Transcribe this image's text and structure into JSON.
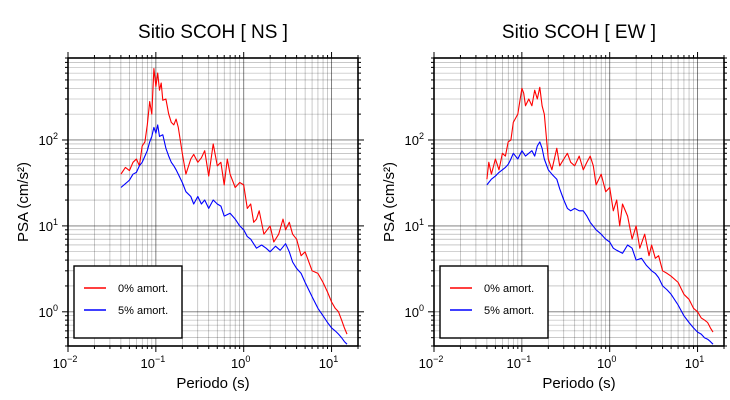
{
  "chart_data": [
    {
      "type": "line",
      "title": "Sitio SCOH [ NS ]",
      "xlabel": "Periodo (s)",
      "ylabel": "PSA (cm/s²)",
      "xscale": "log",
      "yscale": "log",
      "xlim": [
        0.01,
        20
      ],
      "ylim": [
        0.4,
        900
      ],
      "grid": true,
      "legend_position": "bottom-left",
      "xticks": [
        {
          "base": "10",
          "exp": "−2"
        },
        {
          "base": "10",
          "exp": "−1"
        },
        {
          "base": "10",
          "exp": "0"
        },
        {
          "base": "10",
          "exp": "1"
        }
      ],
      "yticks": [
        {
          "base": "10",
          "exp": "0"
        },
        {
          "base": "10",
          "exp": "1"
        },
        {
          "base": "10",
          "exp": "2"
        }
      ],
      "series": [
        {
          "name": "0% amort.",
          "color": "#ff0000",
          "x": [
            0.04,
            0.045,
            0.05,
            0.055,
            0.06,
            0.065,
            0.07,
            0.075,
            0.08,
            0.085,
            0.09,
            0.095,
            0.1,
            0.105,
            0.11,
            0.115,
            0.12,
            0.13,
            0.14,
            0.15,
            0.16,
            0.17,
            0.18,
            0.2,
            0.22,
            0.25,
            0.27,
            0.3,
            0.33,
            0.36,
            0.4,
            0.45,
            0.5,
            0.55,
            0.6,
            0.65,
            0.7,
            0.8,
            0.9,
            1.0,
            1.1,
            1.2,
            1.3,
            1.4,
            1.5,
            1.7,
            2.0,
            2.2,
            2.5,
            2.8,
            3.0,
            3.3,
            3.6,
            4.0,
            4.5,
            5.0,
            6.0,
            7.0,
            8.0,
            9.0,
            10.0,
            11.0,
            12.0,
            13.0,
            14.0,
            15.0
          ],
          "y": [
            40,
            48,
            44,
            55,
            60,
            50,
            85,
            95,
            150,
            280,
            200,
            680,
            420,
            600,
            380,
            460,
            290,
            300,
            200,
            160,
            150,
            175,
            140,
            70,
            40,
            60,
            68,
            55,
            62,
            75,
            38,
            90,
            50,
            55,
            30,
            60,
            40,
            28,
            32,
            30,
            16,
            18,
            11,
            12,
            15,
            8,
            10,
            6.5,
            8,
            12,
            9,
            11,
            8,
            7,
            4.5,
            5,
            3,
            2.8,
            2.2,
            1.7,
            1.3,
            1.1,
            1.0,
            0.8,
            0.65,
            0.55
          ]
        },
        {
          "name": "5% amort.",
          "color": "#0000ff",
          "x": [
            0.04,
            0.045,
            0.05,
            0.055,
            0.06,
            0.065,
            0.07,
            0.075,
            0.08,
            0.085,
            0.09,
            0.095,
            0.1,
            0.105,
            0.11,
            0.12,
            0.13,
            0.14,
            0.15,
            0.16,
            0.17,
            0.18,
            0.2,
            0.22,
            0.25,
            0.27,
            0.3,
            0.33,
            0.36,
            0.4,
            0.45,
            0.5,
            0.55,
            0.6,
            0.7,
            0.8,
            0.9,
            1.0,
            1.1,
            1.2,
            1.4,
            1.6,
            1.8,
            2.0,
            2.3,
            2.6,
            3.0,
            3.3,
            3.6,
            4.0,
            4.5,
            5.0,
            6.0,
            7.0,
            8.0,
            9.0,
            10.0,
            11.0,
            12.0,
            13.0,
            14.0,
            15.0
          ],
          "y": [
            28,
            31,
            34,
            40,
            42,
            50,
            55,
            65,
            75,
            95,
            110,
            140,
            120,
            150,
            110,
            115,
            80,
            65,
            55,
            50,
            45,
            40,
            32,
            25,
            22,
            18,
            22,
            18,
            20,
            16,
            20,
            18,
            17,
            13,
            14,
            12,
            10,
            9,
            7.5,
            7,
            5.5,
            6,
            5.5,
            5,
            5.8,
            5.2,
            6.2,
            5,
            3.8,
            3.2,
            2.8,
            2.2,
            1.5,
            1.1,
            0.9,
            0.75,
            0.65,
            0.6,
            0.55,
            0.5,
            0.45,
            0.42
          ]
        }
      ]
    },
    {
      "type": "line",
      "title": "Sitio SCOH [ EW ]",
      "xlabel": "Periodo (s)",
      "ylabel": "PSA (cm/s²)",
      "xscale": "log",
      "yscale": "log",
      "xlim": [
        0.01,
        20
      ],
      "ylim": [
        0.4,
        900
      ],
      "grid": true,
      "legend_position": "bottom-left",
      "xticks": [
        {
          "base": "10",
          "exp": "−2"
        },
        {
          "base": "10",
          "exp": "−1"
        },
        {
          "base": "10",
          "exp": "0"
        },
        {
          "base": "10",
          "exp": "1"
        }
      ],
      "yticks": [
        {
          "base": "10",
          "exp": "0"
        },
        {
          "base": "10",
          "exp": "1"
        },
        {
          "base": "10",
          "exp": "2"
        }
      ],
      "series": [
        {
          "name": "0% amort.",
          "color": "#ff0000",
          "x": [
            0.04,
            0.042,
            0.045,
            0.05,
            0.055,
            0.06,
            0.065,
            0.07,
            0.075,
            0.08,
            0.09,
            0.1,
            0.105,
            0.11,
            0.12,
            0.13,
            0.14,
            0.15,
            0.16,
            0.17,
            0.18,
            0.2,
            0.22,
            0.25,
            0.27,
            0.3,
            0.33,
            0.36,
            0.4,
            0.45,
            0.5,
            0.55,
            0.6,
            0.65,
            0.7,
            0.8,
            0.9,
            1.0,
            1.1,
            1.2,
            1.3,
            1.4,
            1.6,
            1.8,
            2.0,
            2.2,
            2.5,
            2.8,
            3.0,
            3.3,
            3.6,
            4.0,
            4.5,
            5.0,
            6.0,
            7.0,
            8.0,
            9.0,
            10.0,
            11.0,
            12.0,
            13.0,
            14.0,
            15.0
          ],
          "y": [
            35,
            55,
            40,
            60,
            45,
            70,
            65,
            95,
            100,
            160,
            200,
            400,
            350,
            250,
            300,
            250,
            380,
            300,
            410,
            250,
            200,
            60,
            45,
            80,
            50,
            60,
            70,
            55,
            50,
            65,
            45,
            55,
            65,
            50,
            30,
            40,
            25,
            28,
            15,
            20,
            10,
            18,
            13,
            7,
            10,
            5.5,
            8,
            4.5,
            6,
            4.2,
            4.5,
            3.0,
            2.8,
            2.6,
            2.2,
            1.6,
            1.4,
            1.1,
            1.0,
            0.85,
            0.8,
            0.75,
            0.65,
            0.58
          ]
        },
        {
          "name": "5% amort.",
          "color": "#0000ff",
          "x": [
            0.04,
            0.045,
            0.05,
            0.055,
            0.06,
            0.065,
            0.07,
            0.075,
            0.08,
            0.09,
            0.1,
            0.11,
            0.12,
            0.13,
            0.14,
            0.15,
            0.16,
            0.17,
            0.18,
            0.2,
            0.22,
            0.25,
            0.27,
            0.3,
            0.33,
            0.36,
            0.4,
            0.45,
            0.5,
            0.55,
            0.6,
            0.7,
            0.8,
            0.9,
            1.0,
            1.1,
            1.2,
            1.4,
            1.6,
            1.8,
            2.0,
            2.3,
            2.6,
            3.0,
            3.3,
            3.6,
            4.0,
            4.5,
            5.0,
            6.0,
            7.0,
            8.0,
            9.0,
            10.0,
            11.0,
            12.0,
            13.0,
            14.0,
            15.0
          ],
          "y": [
            30,
            35,
            38,
            42,
            45,
            48,
            52,
            60,
            70,
            60,
            75,
            65,
            70,
            75,
            65,
            85,
            95,
            80,
            60,
            45,
            40,
            35,
            27,
            20,
            16,
            15,
            16,
            15,
            15,
            13,
            11,
            9,
            8,
            7,
            6.5,
            5.5,
            5.2,
            4.8,
            6,
            5.5,
            4.0,
            4.2,
            3.5,
            3.0,
            2.8,
            2.5,
            2.0,
            1.8,
            1.6,
            1.2,
            0.9,
            0.75,
            0.65,
            0.58,
            0.55,
            0.5,
            0.48,
            0.45,
            0.42
          ]
        }
      ]
    }
  ]
}
